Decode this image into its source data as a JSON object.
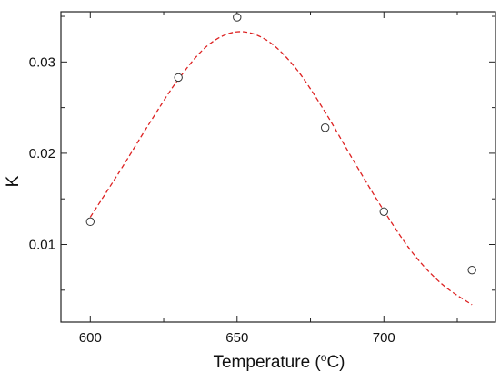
{
  "chart_data": {
    "type": "scatter",
    "title": "",
    "xlabel": "Temperature (",
    "xlabel_sup": "o",
    "xlabel_tail": "C)",
    "ylabel": "K",
    "xlim": [
      590,
      738
    ],
    "ylim": [
      0.0015,
      0.0355
    ],
    "xticks": [
      600,
      650,
      700
    ],
    "xtick_labels": [
      "600",
      "650",
      "700"
    ],
    "yticks": [
      0.01,
      0.02,
      0.03
    ],
    "ytick_labels": [
      "0.01",
      "0.02",
      "0.03"
    ],
    "grid": false,
    "series": [
      {
        "kind": "markers",
        "marker": "open-circle",
        "color": "#333333",
        "x": [
          600,
          630,
          650,
          680,
          700,
          730
        ],
        "y": [
          0.0125,
          0.0283,
          0.0349,
          0.0228,
          0.0136,
          0.0072
        ]
      },
      {
        "kind": "fit-line",
        "style": "dashed",
        "color": "#dd2222",
        "x": [
          600,
          610,
          620,
          630,
          640,
          650,
          660,
          670,
          680,
          690,
          700,
          710,
          720,
          730
        ],
        "y": [
          0.013,
          0.018,
          0.0232,
          0.0281,
          0.0318,
          0.0333,
          0.0324,
          0.0293,
          0.0245,
          0.019,
          0.0137,
          0.009,
          0.0056,
          0.0034
        ]
      }
    ]
  }
}
